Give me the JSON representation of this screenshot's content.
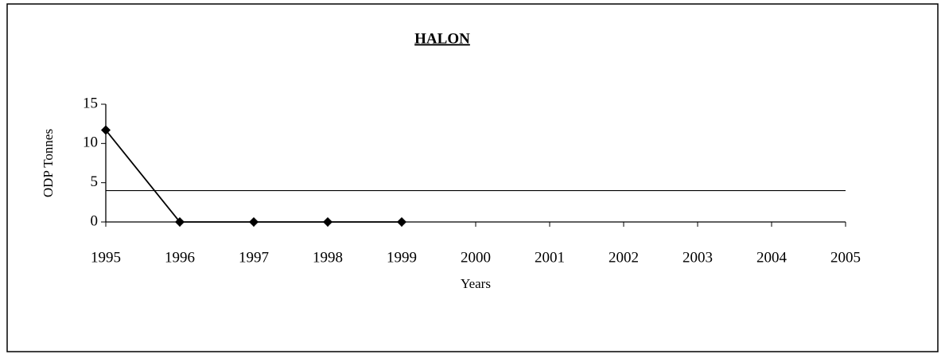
{
  "chart_data": {
    "type": "line",
    "title": "HALON",
    "xlabel": "Years",
    "ylabel": "ODP Tonnes",
    "series": [
      {
        "color": "#000000",
        "marker": "diamond",
        "x": [
          1995,
          1996,
          1997,
          1998,
          1999
        ],
        "values": [
          11.7,
          0,
          0,
          0,
          0
        ]
      },
      {
        "color": "#000000",
        "marker": "none",
        "x": [
          1995,
          2005
        ],
        "values": [
          4,
          4
        ]
      }
    ],
    "xlim": [
      1995,
      2005
    ],
    "xticks": [
      1995,
      1996,
      1997,
      1998,
      1999,
      2000,
      2001,
      2002,
      2003,
      2004,
      2005
    ],
    "ylim": [
      0,
      15
    ],
    "yticks": [
      0,
      5,
      10,
      15
    ],
    "grid": false
  }
}
